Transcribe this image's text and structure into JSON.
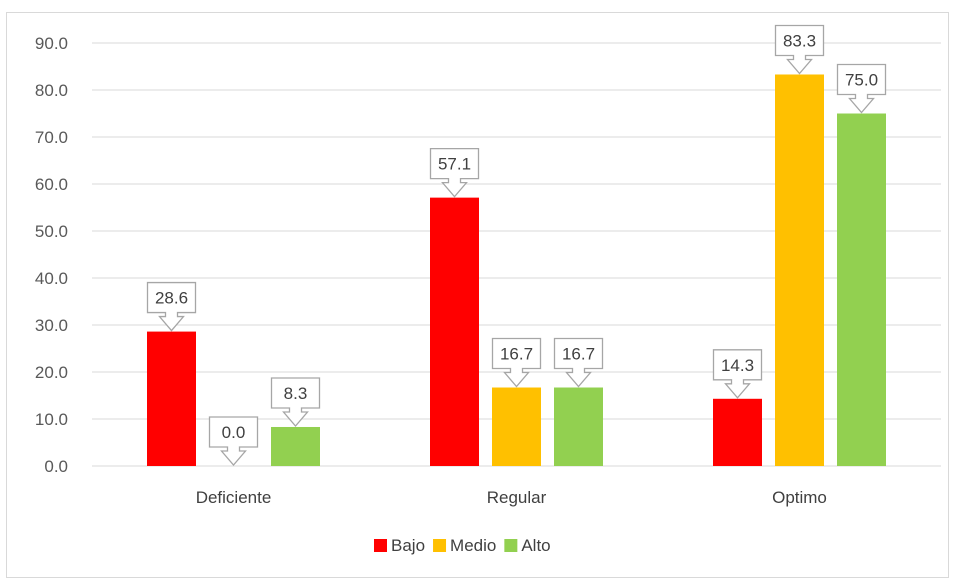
{
  "chart_data": {
    "type": "bar",
    "categories": [
      "Deficiente",
      "Regular",
      "Optimo"
    ],
    "series": [
      {
        "name": "Bajo",
        "color": "#ff0000",
        "values": [
          28.6,
          57.1,
          14.3
        ]
      },
      {
        "name": "Medio",
        "color": "#ffc000",
        "values": [
          0.0,
          16.7,
          83.3
        ]
      },
      {
        "name": "Alto",
        "color": "#92d050",
        "values": [
          8.3,
          16.7,
          75.0
        ]
      }
    ],
    "ylim": [
      0,
      90
    ],
    "yticks": [
      "0.0",
      "10.0",
      "20.0",
      "30.0",
      "40.0",
      "50.0",
      "60.0",
      "70.0",
      "80.0",
      "90.0"
    ],
    "data_labels": [
      [
        "28.6",
        "57.1",
        "14.3"
      ],
      [
        "0.0",
        "16.7",
        "83.3"
      ],
      [
        "8.3",
        "16.7",
        "75.0"
      ]
    ],
    "grid": true,
    "legend_position": "bottom"
  }
}
